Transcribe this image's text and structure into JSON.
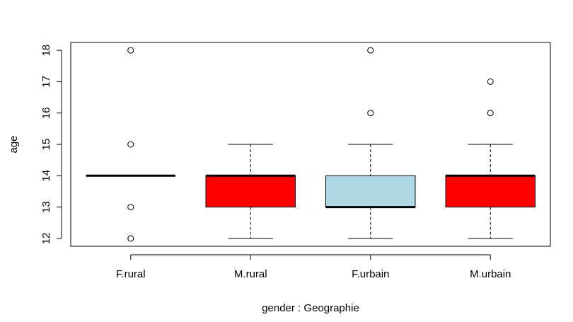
{
  "chart_data": {
    "type": "boxplot",
    "title": "",
    "xlabel": "gender : Geographie",
    "ylabel": "age",
    "ylim": [
      11.75,
      18.25
    ],
    "yticks": [
      12,
      13,
      14,
      15,
      16,
      17,
      18
    ],
    "ytick_labels": [
      "12",
      "13",
      "14",
      "15",
      "16",
      "17",
      "18"
    ],
    "categories": [
      "F.rural",
      "M.rural",
      "F.urbain",
      "M.urbain"
    ],
    "grid": false,
    "legend": "none",
    "boxes": [
      {
        "category": "F.rural",
        "whisker_low": 14,
        "q1": 14,
        "median": 14,
        "q3": 14,
        "whisker_high": 14,
        "outliers": [
          12,
          13,
          15,
          18
        ],
        "fill": "#FFFFFF"
      },
      {
        "category": "M.rural",
        "whisker_low": 12,
        "q1": 13,
        "median": 14,
        "q3": 14,
        "whisker_high": 15,
        "outliers": [],
        "fill": "#FF0000"
      },
      {
        "category": "F.urbain",
        "whisker_low": 12,
        "q1": 13,
        "median": 13,
        "q3": 14,
        "whisker_high": 15,
        "outliers": [
          16,
          18
        ],
        "fill": "#ADD8E6"
      },
      {
        "category": "M.urbain",
        "whisker_low": 12,
        "q1": 13,
        "median": 14,
        "q3": 14,
        "whisker_high": 15,
        "outliers": [
          16,
          17
        ],
        "fill": "#FF0000"
      }
    ]
  }
}
